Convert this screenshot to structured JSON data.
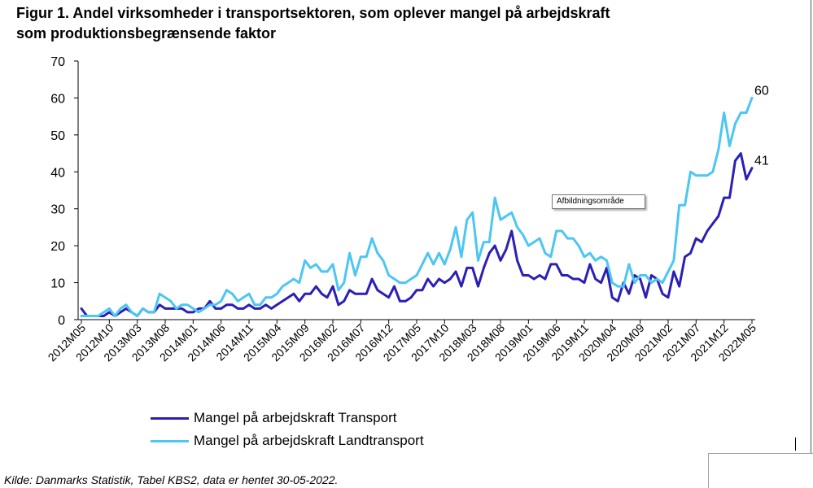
{
  "chart_data": {
    "type": "line",
    "title": "Figur 1. Andel virksomheder i transportsektoren, som oplever mangel på arbejdskraft som produktionsbegrænsende faktor",
    "ylim": [
      0,
      70
    ],
    "yticks": [
      0,
      10,
      20,
      30,
      40,
      50,
      60,
      70
    ],
    "x_tick_labels": [
      "2012M05",
      "2012M10",
      "2013M03",
      "2013M08",
      "2014M01",
      "2014M06",
      "2014M11",
      "2015M04",
      "2015M09",
      "2016M02",
      "2016M07",
      "2016M12",
      "2017M05",
      "2017M10",
      "2018M03",
      "2018M08",
      "2019M01",
      "2019M06",
      "2019M11",
      "2020M04",
      "2020M09",
      "2021M02",
      "2021M07",
      "2021M12",
      "2022M05"
    ],
    "grid": false,
    "legend_position": "bottom",
    "series": [
      {
        "name": "Mangel på arbejdskraft Transport",
        "color": "#2B1FB5",
        "values": [
          3,
          1,
          1,
          1,
          1,
          2,
          1,
          2,
          3,
          2,
          1,
          3,
          2,
          2,
          4,
          3,
          3,
          3,
          3,
          2,
          2,
          3,
          3,
          5,
          3,
          3,
          4,
          4,
          3,
          3,
          4,
          3,
          3,
          4,
          3,
          4,
          5,
          6,
          7,
          5,
          7,
          7,
          9,
          7,
          6,
          9,
          4,
          5,
          8,
          7,
          7,
          7,
          11,
          8,
          7,
          6,
          9,
          5,
          5,
          6,
          8,
          8,
          11,
          9,
          11,
          10,
          11,
          13,
          9,
          14,
          14,
          9,
          14,
          18,
          20,
          16,
          19,
          24,
          16,
          12,
          12,
          11,
          12,
          11,
          15,
          15,
          12,
          12,
          11,
          11,
          10,
          15,
          11,
          10,
          14,
          6,
          5,
          10,
          7,
          12,
          11,
          6,
          12,
          11,
          7,
          6,
          13,
          9,
          17,
          18,
          22,
          21,
          24,
          26,
          28,
          33,
          33,
          43,
          45,
          38,
          41
        ]
      },
      {
        "name": "Mangel på arbejdskraft Landtransport",
        "color": "#4CC6F2",
        "values": [
          1,
          1,
          1,
          1,
          2,
          3,
          1,
          3,
          4,
          2,
          1,
          3,
          2,
          2,
          7,
          6,
          5,
          3,
          4,
          4,
          3,
          2,
          3,
          4,
          4,
          5,
          8,
          7,
          5,
          6,
          7,
          4,
          4,
          6,
          6,
          7,
          9,
          10,
          11,
          10,
          16,
          14,
          15,
          13,
          13,
          15,
          8,
          10,
          18,
          12,
          17,
          17,
          22,
          18,
          16,
          12,
          11,
          10,
          10,
          11,
          12,
          15,
          18,
          15,
          18,
          15,
          19,
          25,
          17,
          27,
          29,
          16,
          21,
          21,
          33,
          27,
          28,
          29,
          25,
          23,
          20,
          21,
          22,
          18,
          17,
          24,
          24,
          22,
          22,
          20,
          17,
          18,
          16,
          17,
          16,
          10,
          9,
          9,
          15,
          10,
          12,
          12,
          10,
          11,
          10,
          13,
          16,
          31,
          31,
          40,
          39,
          39,
          39,
          40,
          46,
          56,
          47,
          53,
          56,
          56,
          60
        ]
      }
    ]
  },
  "tooltip": "Afbildningsområde",
  "source": "Kilde: Danmarks Statistik, Tabel KBS2, data er hentet 30-05-2022."
}
